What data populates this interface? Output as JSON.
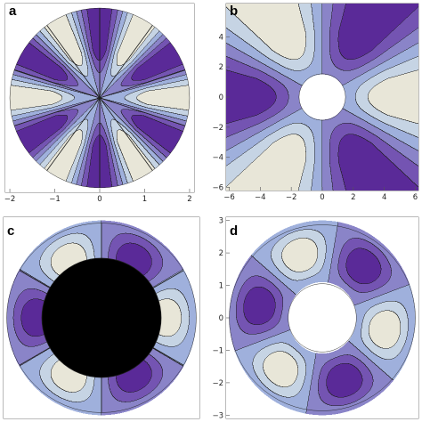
{
  "colors": {
    "level_0": "#e8e6d8",
    "level_1": "#c6d4e4",
    "level_2": "#9fb0dc",
    "level_3": "#8a84c8",
    "level_4": "#7454b2",
    "level_5": "#5a2a98",
    "contour_line": "#1e1e1e",
    "background": "#ffffff"
  },
  "chart_data": [
    {
      "panel": "a",
      "type": "heatmap",
      "xlim": [
        -2.1,
        2.1
      ],
      "ylim": [
        -2.1,
        2.1
      ],
      "xticks": [
        -2,
        -1,
        0,
        1,
        2
      ],
      "yticks": [],
      "domain": "disk",
      "r_outer": 2,
      "r_inner": 0,
      "modes": 6,
      "amplitude": "r",
      "phase_deg": 0,
      "sector_lines": 10,
      "center_annulus": false
    },
    {
      "panel": "b",
      "type": "heatmap",
      "xlim": [
        -6.2,
        6.2
      ],
      "ylim": [
        -6.2,
        6.2
      ],
      "xticks": [
        -6,
        -4,
        -2,
        0,
        2,
        4,
        6
      ],
      "yticks": [
        -6,
        -4,
        -2,
        0,
        2,
        4
      ],
      "domain": "square-with-hole",
      "r_outer": 6.2,
      "r_inner": 1.5,
      "modes": 3,
      "amplitude": "unbounded",
      "phase_deg": 0,
      "sector_lines": 0,
      "center_annulus": false
    },
    {
      "panel": "c",
      "type": "heatmap",
      "xlim": [
        -3.1,
        3.1
      ],
      "ylim": [
        -3.1,
        3.1
      ],
      "xticks": [],
      "yticks": [],
      "domain": "annulus",
      "r_outer": 3,
      "r_inner": 1,
      "modes": 3,
      "amplitude": "annulus",
      "phase_deg": 0,
      "sector_lines": 6,
      "center_annulus": true
    },
    {
      "panel": "d",
      "type": "heatmap",
      "xlim": [
        -3.1,
        3.1
      ],
      "ylim": [
        -3.1,
        3.1
      ],
      "xticks": [],
      "yticks": [
        -3,
        -2,
        -1,
        0,
        1,
        2,
        3
      ],
      "domain": "annulus",
      "r_outer": 3,
      "r_inner": 1.1,
      "modes": 3,
      "amplitude": "annulus",
      "phase_deg": 30,
      "sector_lines": 0,
      "center_annulus": false
    }
  ]
}
